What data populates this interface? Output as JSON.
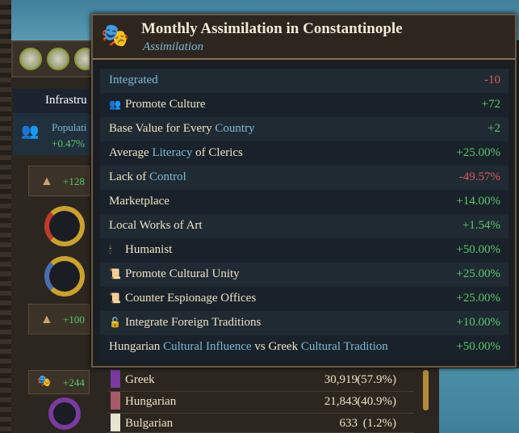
{
  "background": {
    "infrastructure_label": "Infrastru",
    "population_label": "Populati",
    "population_growth": "+0.47%",
    "stat_up": "+128",
    "stat_down": "+100",
    "culture_stat": "+244",
    "cultures": [
      {
        "name": "Greek",
        "count": "30,919",
        "percent": "(57.9%)",
        "color": "#7a3aa0"
      },
      {
        "name": "Hungarian",
        "count": "21,843",
        "percent": "(40.9%)",
        "color": "#a85a68"
      },
      {
        "name": "Bulgarian",
        "count": "633",
        "percent": "(1.2%)",
        "color": "#e8e4d2"
      }
    ]
  },
  "tooltip": {
    "title": "Monthly Assimilation in Constantinople",
    "subtitle": "Assimilation",
    "icon": "masks-icon",
    "rows": [
      {
        "parts": [
          {
            "t": "Integrated",
            "hl": true
          }
        ],
        "value": "-10",
        "sign": "neg"
      },
      {
        "icon": "promote-culture-icon",
        "parts": [
          {
            "t": "Promote Culture"
          }
        ],
        "value": "+72",
        "sign": "pos"
      },
      {
        "parts": [
          {
            "t": "Base Value for Every "
          },
          {
            "t": "Country",
            "hl": true
          }
        ],
        "value": "+2",
        "sign": "pos"
      },
      {
        "parts": [
          {
            "t": "Average "
          },
          {
            "t": "Literacy",
            "hl": true
          },
          {
            "t": " of Clerics"
          }
        ],
        "value": "+25.00%",
        "sign": "pos"
      },
      {
        "parts": [
          {
            "t": "Lack of "
          },
          {
            "t": "Control",
            "hl": true
          }
        ],
        "value": "-49.57%",
        "sign": "neg"
      },
      {
        "parts": [
          {
            "t": "Marketplace"
          }
        ],
        "value": "+14.00%",
        "sign": "pos"
      },
      {
        "parts": [
          {
            "t": "Local Works of Art"
          }
        ],
        "value": "+1.54%",
        "sign": "pos"
      },
      {
        "icon": "humanist-icon",
        "parts": [
          {
            "t": "Humanist"
          }
        ],
        "value": "+50.00%",
        "sign": "pos"
      },
      {
        "icon": "cultural-unity-icon",
        "parts": [
          {
            "t": "Promote Cultural Unity"
          }
        ],
        "value": "+25.00%",
        "sign": "pos"
      },
      {
        "icon": "scroll-icon",
        "parts": [
          {
            "t": "Counter Espionage Offices"
          }
        ],
        "value": "+25.00%",
        "sign": "pos"
      },
      {
        "icon": "foreign-traditions-icon",
        "parts": [
          {
            "t": "Integrate Foreign Traditions"
          }
        ],
        "value": "+10.00%",
        "sign": "pos"
      },
      {
        "parts": [
          {
            "t": "Hungarian "
          },
          {
            "t": "Cultural Influence",
            "hl": true
          },
          {
            "t": " vs Greek "
          },
          {
            "t": "Cultural Tradition",
            "hl": true
          }
        ],
        "value": "+50.00%",
        "sign": "pos"
      }
    ]
  }
}
